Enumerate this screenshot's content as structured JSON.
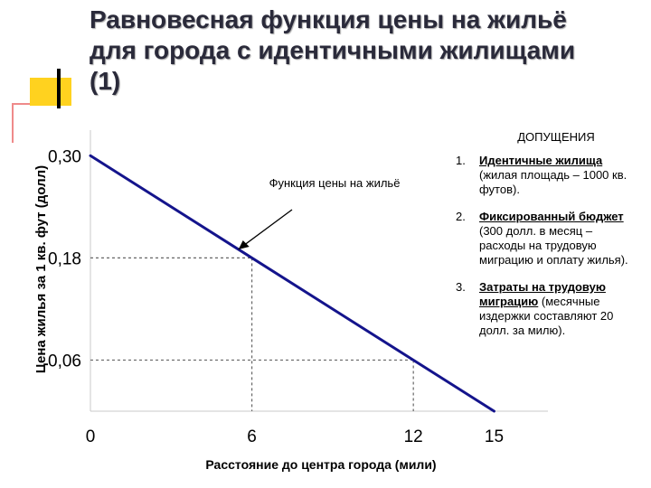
{
  "title": "Равновесная функция цены на жильё\nдля города с идентичными жилищами\n(1)",
  "chart_data": {
    "type": "line",
    "x": [
      0,
      15
    ],
    "y": [
      0.3,
      0.0
    ],
    "ylabel": "Цена жилья за 1 кв. фут (долл)",
    "xlabel": "Расстояние до центра города (мили)",
    "x_ticks": [
      "0",
      "6",
      "12",
      "15"
    ],
    "x_tick_values": [
      0,
      6,
      12,
      15
    ],
    "y_ticks": [
      "0,30",
      "0,18",
      "0,06"
    ],
    "y_tick_values": [
      0.3,
      0.18,
      0.06
    ],
    "xlim": [
      0,
      17
    ],
    "ylim": [
      0,
      0.33
    ],
    "grid": false,
    "reference_points": [
      {
        "x": 6,
        "y": 0.18
      },
      {
        "x": 12,
        "y": 0.06
      }
    ],
    "annotation": "Функция цены на жильё",
    "line_color": "#14148c"
  },
  "assumptions": {
    "heading": "ДОПУЩЕНИЯ",
    "items": [
      {
        "number": "1.",
        "underlined": "Идентичные жилища",
        "text": " (жилая площадь – 1000 кв. футов)."
      },
      {
        "number": "2.",
        "underlined": "Фиксированный бюджет",
        "text": " (300 долл. в месяц – расходы на трудовую миграцию и оплату жилья)."
      },
      {
        "number": "3.",
        "underlined": "Затраты на трудовую миграцию",
        "text": " (месячные издержки составляют 20 долл. за милю)."
      }
    ]
  }
}
